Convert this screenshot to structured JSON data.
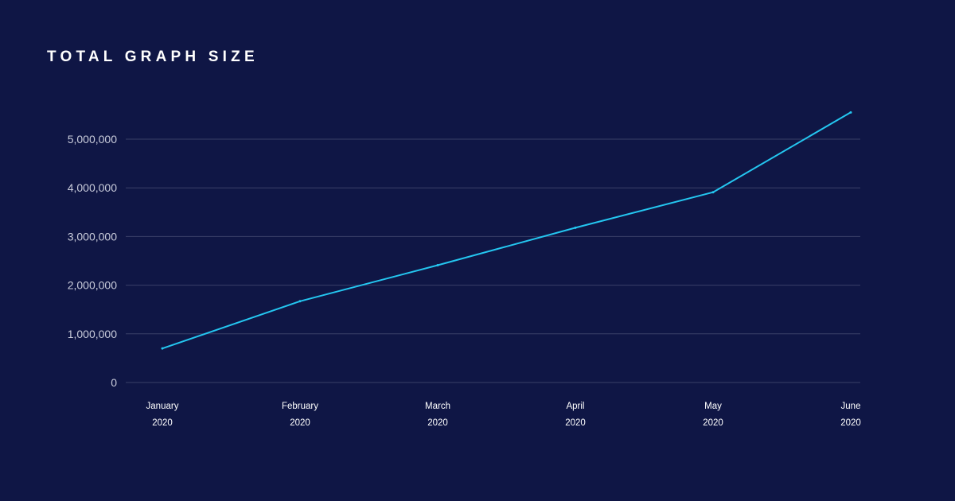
{
  "colors": {
    "background": "#0f1645",
    "line": "#24c6f0",
    "grid": "#3a4068",
    "title": "#ffffff",
    "y_tick_text": "#c9ccdb",
    "x_tick_text": "#ffffff"
  },
  "chart_data": {
    "type": "line",
    "title": "TOTAL GRAPH SIZE",
    "xlabel": "",
    "ylabel": "",
    "categories": [
      [
        "January",
        "2020"
      ],
      [
        "February",
        "2020"
      ],
      [
        "March",
        "2020"
      ],
      [
        "April",
        "2020"
      ],
      [
        "May",
        "2020"
      ],
      [
        "June",
        "2020"
      ]
    ],
    "series": [
      {
        "values": [
          700000,
          1670000,
          2410000,
          3180000,
          3910000,
          5550000
        ]
      }
    ],
    "ylim": [
      0,
      5000000
    ],
    "yticks": [
      0,
      1000000,
      2000000,
      3000000,
      4000000,
      5000000
    ],
    "ytick_labels": [
      "0",
      "1,000,000",
      "2,000,000",
      "3,000,000",
      "4,000,000",
      "5,000,000"
    ],
    "grid": true,
    "legend": "none"
  }
}
